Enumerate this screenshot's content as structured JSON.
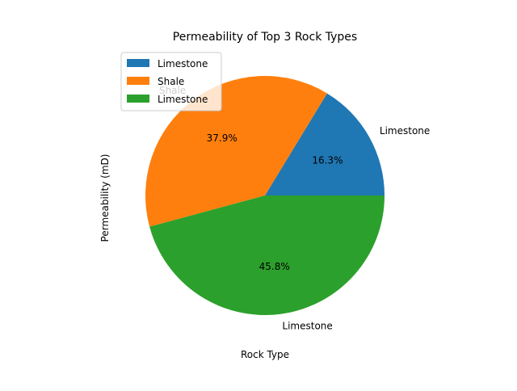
{
  "chart_data": {
    "type": "pie",
    "title": "Permeability of Top 3 Rock Types",
    "xlabel": "Rock Type",
    "ylabel": "Permeability (mD)",
    "start_angle_deg": 0,
    "direction": "counterclockwise",
    "legend_position": "upper-left",
    "slices": [
      {
        "label": "Limestone",
        "percent": 16.3,
        "pct_label": "16.3%",
        "color": "#1f77b4"
      },
      {
        "label": "Shale",
        "percent": 37.9,
        "pct_label": "37.9%",
        "color": "#ff7f0e"
      },
      {
        "label": "Limestone",
        "percent": 45.8,
        "pct_label": "45.8%",
        "color": "#2ca02c"
      }
    ]
  }
}
